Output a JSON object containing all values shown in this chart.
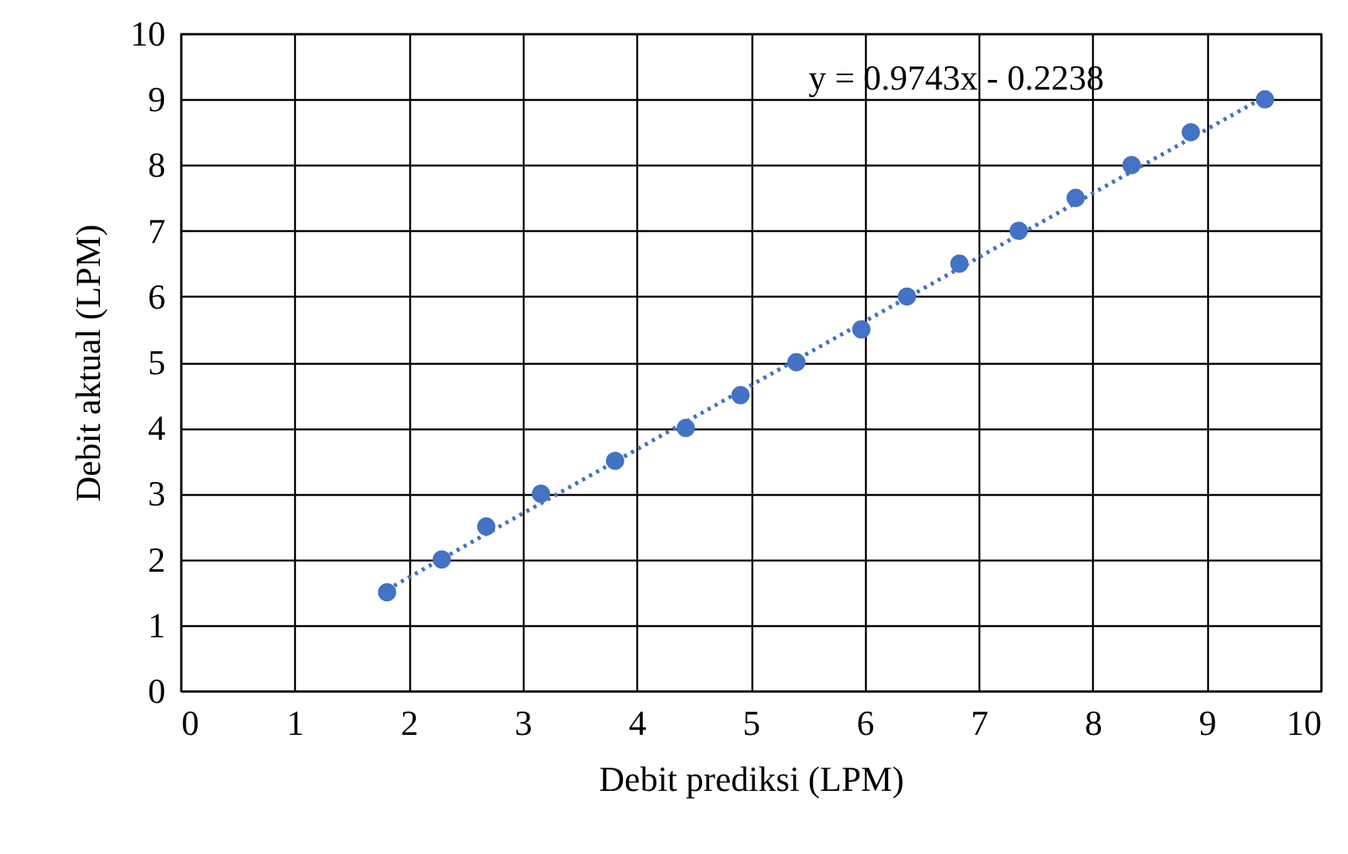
{
  "chart_data": {
    "type": "scatter",
    "xlabel": "Debit prediksi (LPM)",
    "ylabel": "Debit aktual (LPM)",
    "xlim": [
      0,
      10
    ],
    "ylim": [
      0,
      10
    ],
    "xticks": [
      0,
      1,
      2,
      3,
      4,
      5,
      6,
      7,
      8,
      9,
      10
    ],
    "yticks": [
      0,
      1,
      2,
      3,
      4,
      5,
      6,
      7,
      8,
      9,
      10
    ],
    "grid": true,
    "series": [
      {
        "color": "#4472c4",
        "marker": "circle",
        "x": [
          1.81,
          2.29,
          2.68,
          3.16,
          3.81,
          4.43,
          4.91,
          5.4,
          5.97,
          6.37,
          6.83,
          7.35,
          7.85,
          8.34,
          8.86,
          9.51
        ],
        "values": [
          1.5,
          2,
          2.5,
          3,
          3.5,
          4,
          4.5,
          5,
          5.5,
          6,
          6.5,
          7,
          7.5,
          8,
          8.5,
          9
        ]
      },
      {
        "type": "line",
        "color": "#4472c4",
        "line_style": "dotted",
        "x": [
          1.81,
          9.51
        ],
        "values": [
          1.54,
          9.04
        ]
      }
    ],
    "annotations": [
      "y = 0.9743x - 0.2238"
    ]
  }
}
